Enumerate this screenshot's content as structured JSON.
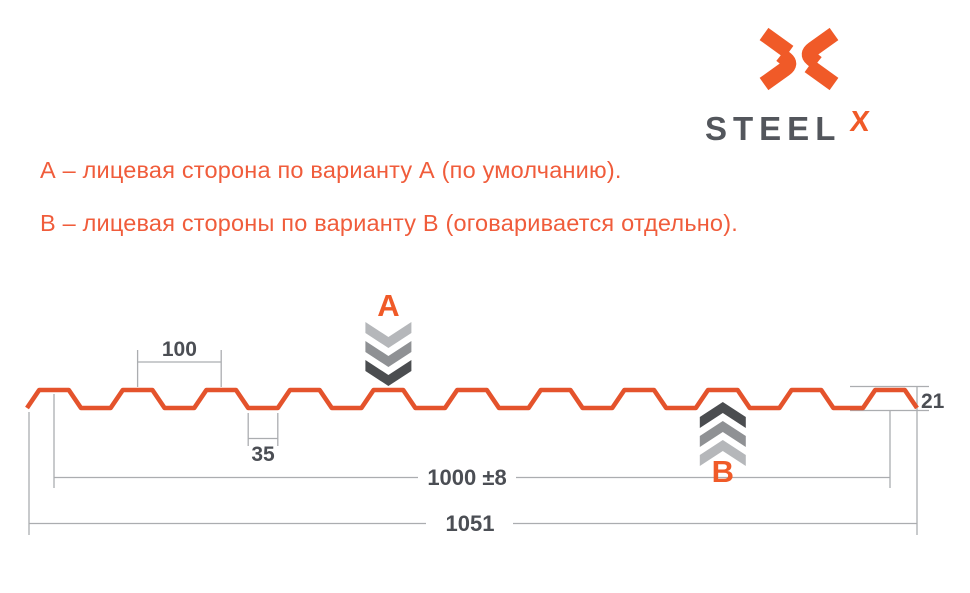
{
  "logo": {
    "brand": "STEEL",
    "sup": "X"
  },
  "notes": {
    "line_a": "А – лицевая сторона по варианту А (по умолчанию).",
    "line_b": "В – лицевая стороны по варианту В (оговаривается отдельно)."
  },
  "markers": {
    "a": "A",
    "b": "B"
  },
  "dims": {
    "pitch": "100",
    "valley": "35",
    "cover": "1000 ±8",
    "overall": "1051",
    "height": "21"
  },
  "colors": {
    "accent_orange": "#F05A28",
    "profile_orange": "#E4532C",
    "text_dark": "#4B4E54",
    "brand_gray": "#53565C",
    "dim_line_gray": "#ABADB0",
    "chevron_light": "#B5B7BA",
    "chevron_mid": "#8F9194",
    "chevron_dark": "#4B4D50"
  }
}
